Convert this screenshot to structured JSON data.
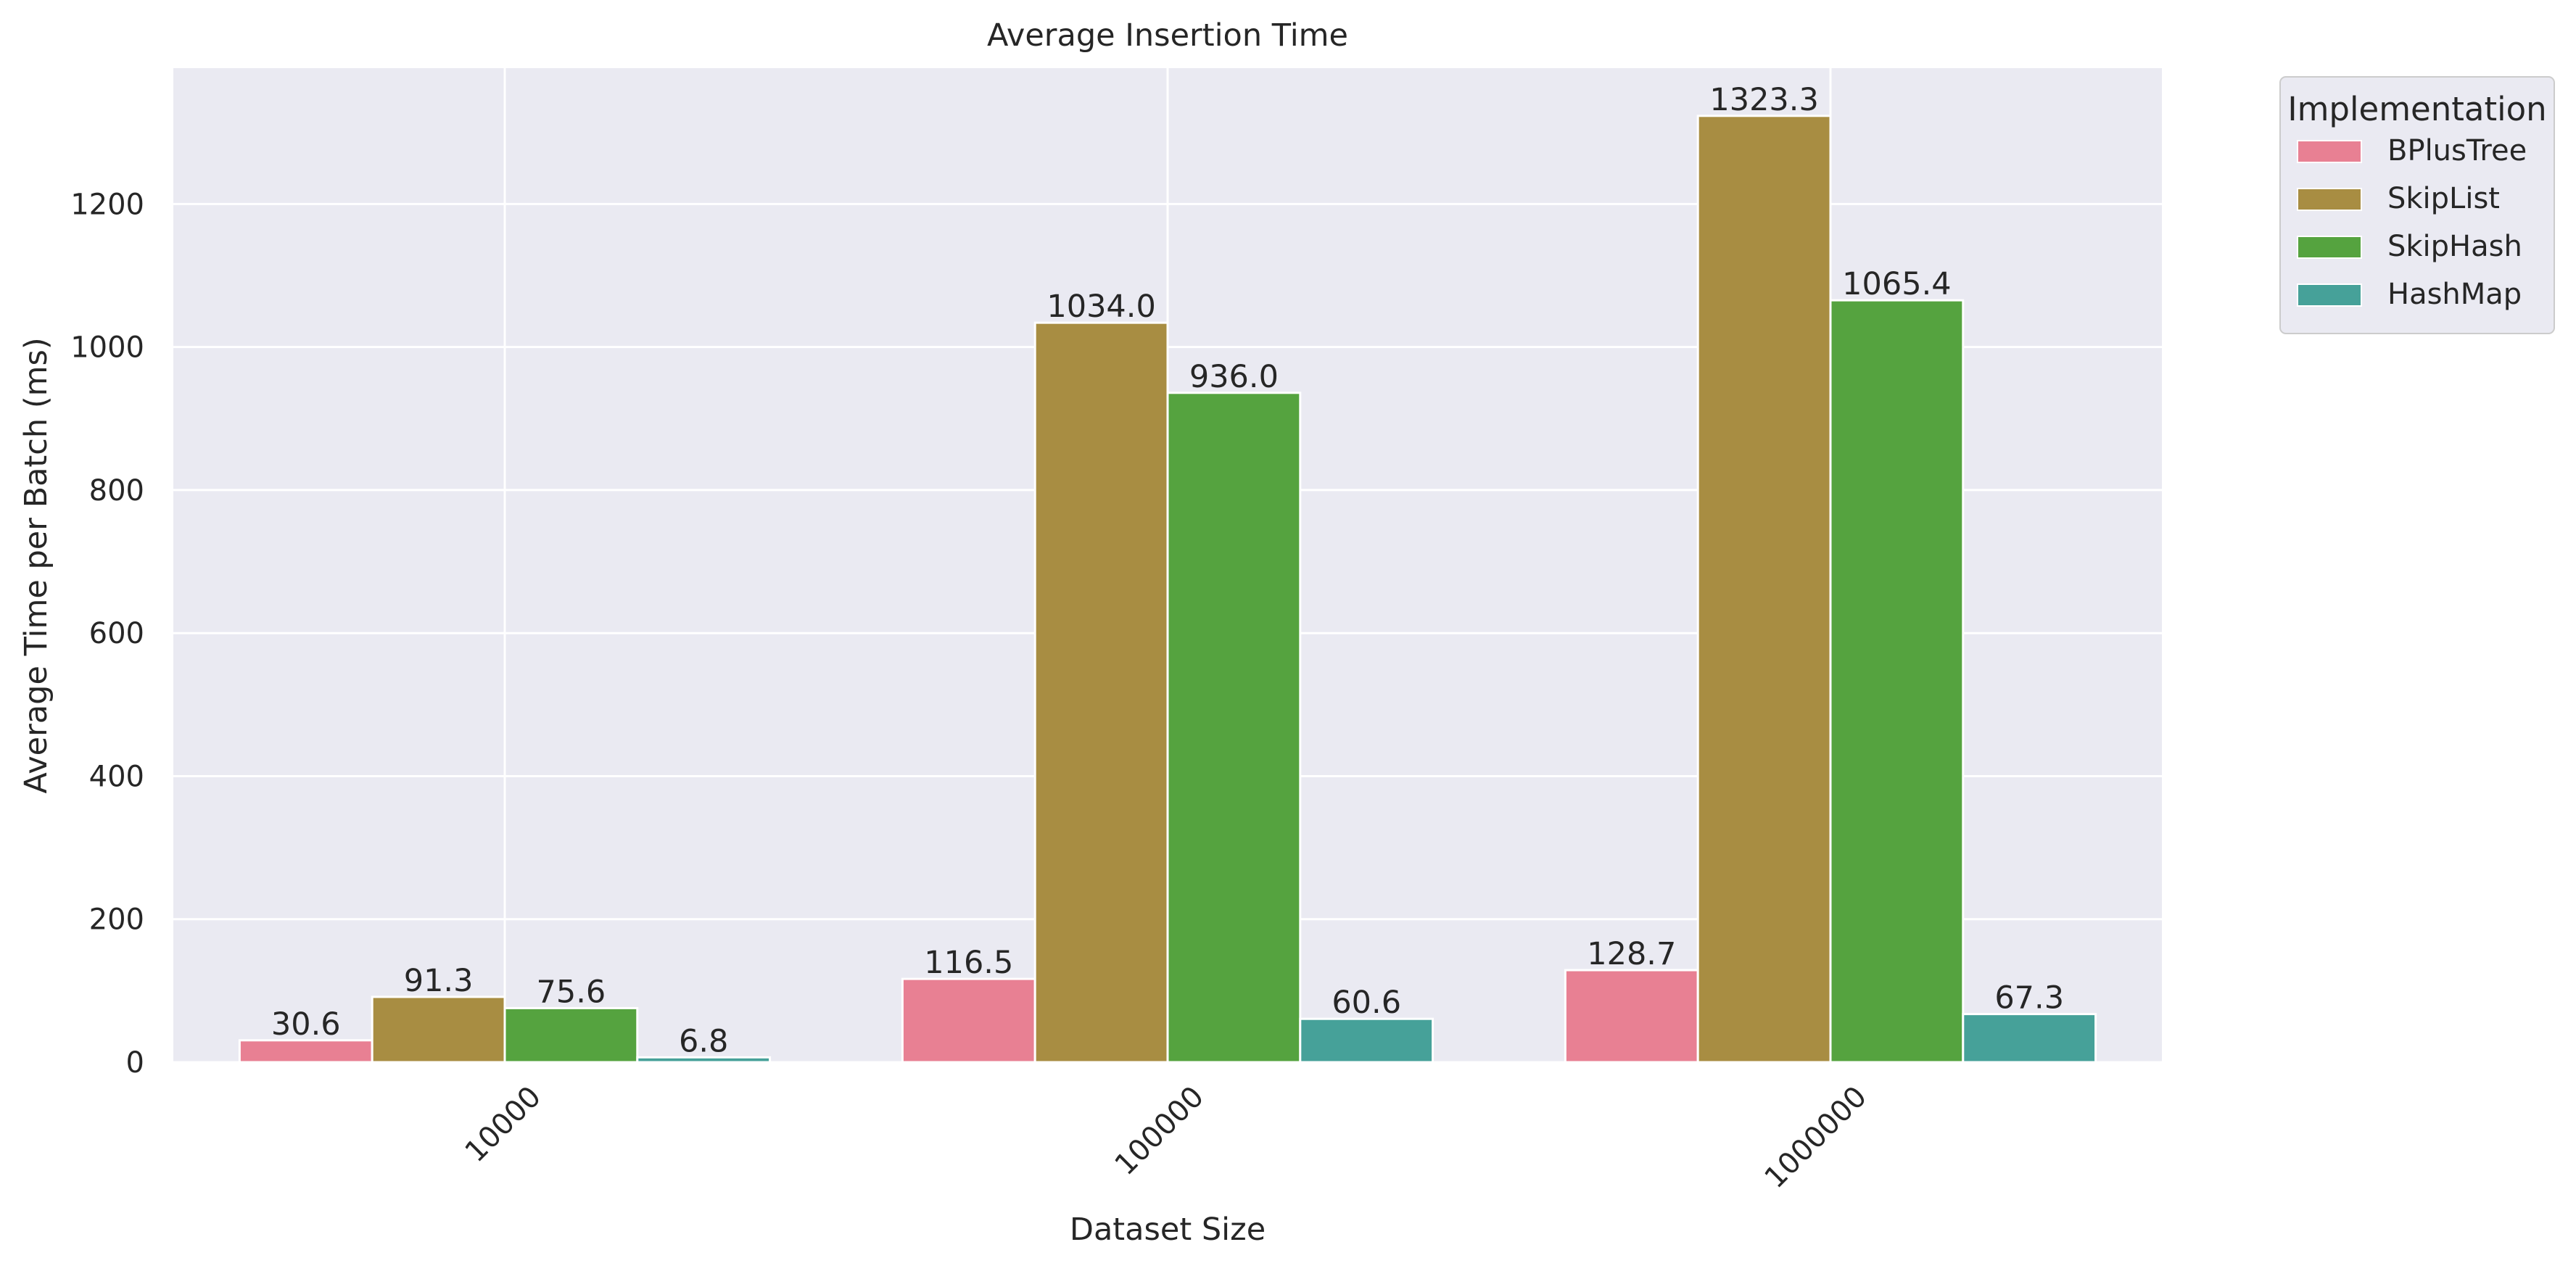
{
  "chart_data": {
    "type": "bar",
    "title": "Average Insertion Time",
    "xlabel": "Dataset Size",
    "ylabel": "Average Time per Batch (ms)",
    "categories": [
      "10000",
      "100000",
      "1000000"
    ],
    "ylim": [
      0,
      1390
    ],
    "yticks": [
      0,
      200,
      400,
      600,
      800,
      1000,
      1200
    ],
    "grid": true,
    "legend": {
      "title": "Implementation",
      "placement": "outside-top-right"
    },
    "series": [
      {
        "name": "BPlusTree",
        "color": "#e88093",
        "values": [
          30.6,
          116.5,
          128.7
        ],
        "labels": [
          "30.6",
          "116.5",
          "128.7"
        ]
      },
      {
        "name": "SkipList",
        "color": "#a88d42",
        "values": [
          91.3,
          1034.0,
          1323.3
        ],
        "labels": [
          "91.3",
          "1034.0",
          "1323.3"
        ]
      },
      {
        "name": "SkipHash",
        "color": "#55a33f",
        "values": [
          75.6,
          936.0,
          1065.4
        ],
        "labels": [
          "75.6",
          "936.0",
          "1065.4"
        ]
      },
      {
        "name": "HashMap",
        "color": "#46a199",
        "values": [
          6.8,
          60.6,
          67.3
        ],
        "labels": [
          "6.8",
          "60.6",
          "67.3"
        ]
      }
    ]
  }
}
